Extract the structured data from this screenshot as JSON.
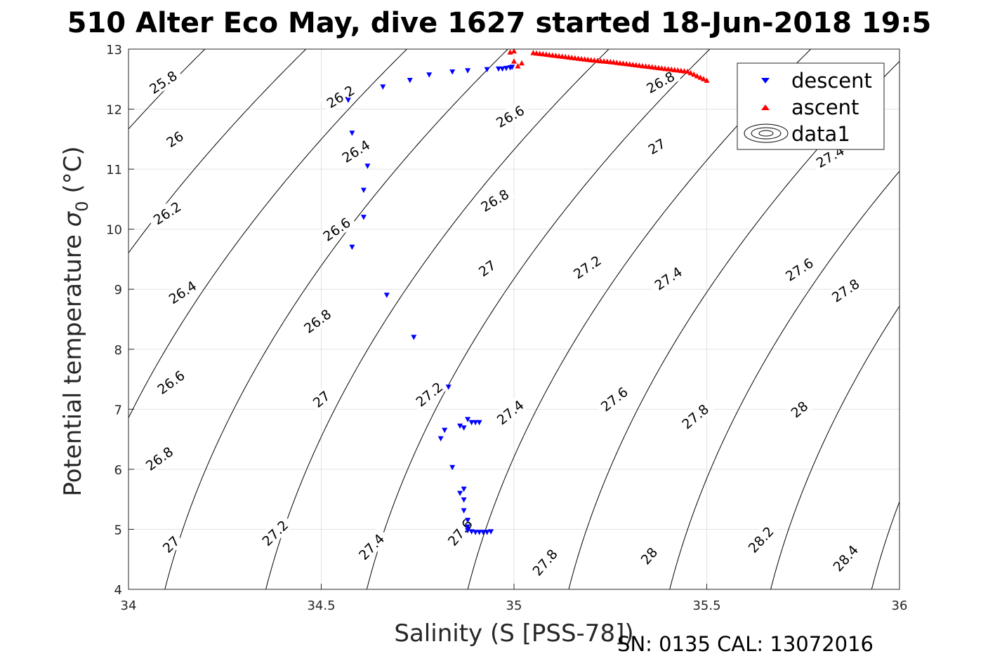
{
  "chart_data": {
    "type": "scatter",
    "title": "510 Alter Eco May, dive 1627 started 18-Jun-2018 19:5",
    "xlabel": "Salinity (S [PSS-78])",
    "ylabel_text": "Potential temperature ",
    "ylabel_sigma": "σ",
    "ylabel_sub": "0",
    "ylabel_unit": " (°C)",
    "footer": "SN: 0135  CAL: 13072016",
    "xlim": [
      34,
      36
    ],
    "ylim": [
      4,
      13
    ],
    "xticks": [
      34,
      34.5,
      35,
      35.5,
      36
    ],
    "xtick_labels": [
      "34",
      "34.5",
      "35",
      "35.5",
      "36"
    ],
    "yticks": [
      4,
      5,
      6,
      7,
      8,
      9,
      10,
      11,
      12,
      13
    ],
    "ytick_labels": [
      "4",
      "5",
      "6",
      "7",
      "8",
      "9",
      "10",
      "11",
      "12",
      "13"
    ],
    "grid": true,
    "legend_position": "top-right",
    "legend": [
      "descent",
      "ascent",
      "data1"
    ],
    "series": [
      {
        "name": "descent",
        "color": "#0000ff",
        "marker": "triangle-down",
        "points": [
          [
            34.57,
            12.15
          ],
          [
            34.66,
            12.37
          ],
          [
            34.73,
            12.48
          ],
          [
            34.78,
            12.57
          ],
          [
            34.84,
            12.62
          ],
          [
            34.88,
            12.64
          ],
          [
            34.93,
            12.66
          ],
          [
            34.96,
            12.67
          ],
          [
            34.97,
            12.67
          ],
          [
            34.98,
            12.68
          ],
          [
            34.99,
            12.69
          ],
          [
            34.995,
            12.7
          ],
          [
            34.58,
            11.6
          ],
          [
            34.62,
            11.05
          ],
          [
            34.61,
            10.65
          ],
          [
            34.61,
            10.2
          ],
          [
            34.58,
            9.7
          ],
          [
            34.67,
            8.9
          ],
          [
            34.74,
            8.2
          ],
          [
            34.83,
            7.37
          ],
          [
            34.88,
            6.83
          ],
          [
            34.89,
            6.78
          ],
          [
            34.9,
            6.78
          ],
          [
            34.91,
            6.78
          ],
          [
            34.86,
            6.72
          ],
          [
            34.87,
            6.69
          ],
          [
            34.82,
            6.65
          ],
          [
            34.81,
            6.51
          ],
          [
            34.84,
            6.03
          ],
          [
            34.87,
            5.67
          ],
          [
            34.86,
            5.6
          ],
          [
            34.87,
            5.49
          ],
          [
            34.87,
            5.31
          ],
          [
            34.88,
            5.15
          ],
          [
            34.88,
            5.04
          ],
          [
            34.88,
            4.98
          ],
          [
            34.89,
            4.96
          ],
          [
            34.9,
            4.95
          ],
          [
            34.91,
            4.95
          ],
          [
            34.92,
            4.95
          ],
          [
            34.93,
            4.95
          ],
          [
            34.94,
            4.96
          ]
        ]
      },
      {
        "name": "ascent",
        "color": "#ff0000",
        "marker": "triangle-up",
        "points": [
          [
            34.99,
            12.95
          ],
          [
            35.0,
            12.8
          ],
          [
            35.01,
            12.72
          ],
          [
            35.02,
            12.77
          ],
          [
            35.0,
            12.97
          ],
          [
            35.05,
            12.94
          ],
          [
            35.1,
            12.9
          ],
          [
            35.15,
            12.86
          ],
          [
            35.2,
            12.82
          ],
          [
            35.25,
            12.79
          ],
          [
            35.3,
            12.75
          ],
          [
            35.35,
            12.71
          ],
          [
            35.4,
            12.67
          ],
          [
            35.45,
            12.63
          ],
          [
            35.5,
            12.48
          ]
        ]
      }
    ],
    "contour_levels": [
      25.8,
      26,
      26.2,
      26.4,
      26.6,
      26.8,
      27,
      27.2,
      27.4,
      27.6,
      27.8,
      28,
      28.2,
      28.4
    ],
    "contour_labels": [
      {
        "text": "25.8",
        "x": 34.09,
        "y": 12.45,
        "angle": -33
      },
      {
        "text": "26",
        "x": 34.12,
        "y": 11.5,
        "angle": -33
      },
      {
        "text": "26.2",
        "x": 34.1,
        "y": 10.27,
        "angle": -33
      },
      {
        "text": "26.4",
        "x": 34.14,
        "y": 8.95,
        "angle": -33
      },
      {
        "text": "26.6",
        "x": 34.11,
        "y": 7.45,
        "angle": -36
      },
      {
        "text": "26.8",
        "x": 34.08,
        "y": 6.18,
        "angle": -36
      },
      {
        "text": "27",
        "x": 34.11,
        "y": 4.75,
        "angle": -44
      },
      {
        "text": "26.2",
        "x": 34.55,
        "y": 12.21,
        "angle": -32
      },
      {
        "text": "26.4",
        "x": 34.59,
        "y": 11.3,
        "angle": -32
      },
      {
        "text": "26.6",
        "x": 34.54,
        "y": 10.0,
        "angle": -35
      },
      {
        "text": "26.8",
        "x": 34.49,
        "y": 8.47,
        "angle": -37
      },
      {
        "text": "27",
        "x": 34.5,
        "y": 7.17,
        "angle": -40
      },
      {
        "text": "27.2",
        "x": 34.38,
        "y": 4.94,
        "angle": -44
      },
      {
        "text": "26.6",
        "x": 34.99,
        "y": 11.88,
        "angle": -30
      },
      {
        "text": "26.8",
        "x": 34.95,
        "y": 10.48,
        "angle": -31
      },
      {
        "text": "27",
        "x": 34.93,
        "y": 9.35,
        "angle": -35
      },
      {
        "text": "27.2",
        "x": 34.78,
        "y": 7.25,
        "angle": -39
      },
      {
        "text": "27.4",
        "x": 34.99,
        "y": 6.95,
        "angle": -39
      },
      {
        "text": "27.4",
        "x": 34.63,
        "y": 4.71,
        "angle": -46
      },
      {
        "text": "27.6",
        "x": 34.86,
        "y": 4.95,
        "angle": -50
      },
      {
        "text": "26.8",
        "x": 35.38,
        "y": 12.45,
        "angle": -29
      },
      {
        "text": "27",
        "x": 35.37,
        "y": 11.38,
        "angle": -30
      },
      {
        "text": "27.2",
        "x": 35.19,
        "y": 9.37,
        "angle": -34
      },
      {
        "text": "27.4",
        "x": 35.4,
        "y": 9.18,
        "angle": -34
      },
      {
        "text": "27.6",
        "x": 35.26,
        "y": 7.17,
        "angle": -38
      },
      {
        "text": "27.8",
        "x": 35.47,
        "y": 6.88,
        "angle": -40
      },
      {
        "text": "27.8",
        "x": 35.08,
        "y": 4.45,
        "angle": -49
      },
      {
        "text": "28",
        "x": 35.35,
        "y": 4.56,
        "angle": -49
      },
      {
        "text": "27.4",
        "x": 35.82,
        "y": 11.21,
        "angle": -30
      },
      {
        "text": "27.6",
        "x": 35.74,
        "y": 9.33,
        "angle": -33
      },
      {
        "text": "27.8",
        "x": 35.86,
        "y": 8.98,
        "angle": -34
      },
      {
        "text": "28",
        "x": 35.74,
        "y": 7.0,
        "angle": -39
      },
      {
        "text": "28.2",
        "x": 35.64,
        "y": 4.83,
        "angle": -47
      },
      {
        "text": "28.4",
        "x": 35.86,
        "y": 4.52,
        "angle": -48
      }
    ]
  }
}
